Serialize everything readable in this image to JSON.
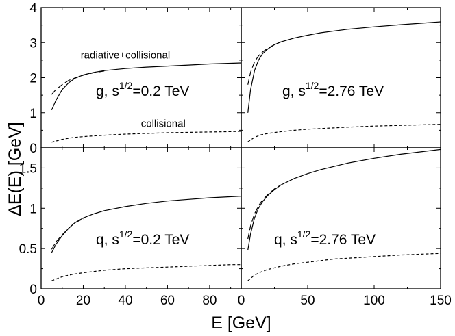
{
  "chart_data": {
    "type": "line",
    "ylabel": "ΔE(E) [GeV]",
    "xlabel": "E [GeV]",
    "layout": "2x2",
    "panels": [
      {
        "id": "top-left",
        "label": "g, s^{1/2}=0.2 TeV",
        "label_main": "g, s",
        "label_sup": "1/2",
        "label_tail": "=0.2 TeV",
        "xlim": [
          0,
          95
        ],
        "ylim": [
          0,
          4
        ],
        "xticks": [
          0,
          20,
          40,
          60,
          80
        ],
        "xtick_labels": [
          "0",
          "20",
          "40",
          "60",
          "80"
        ],
        "yticks": [
          0,
          1,
          2,
          3,
          4
        ],
        "ytick_labels": [
          "0",
          "1",
          "2",
          "3",
          "4"
        ],
        "show_xtick_labels": false,
        "show_ytick_labels": true,
        "annotations": [
          {
            "text": "radiative+collisional",
            "x": 40,
            "y": 2.55
          },
          {
            "text": "collisional",
            "x": 58,
            "y": 0.6
          }
        ],
        "series": [
          {
            "style": "solid",
            "x": [
              5,
              7,
              10,
              13,
              16,
              20,
              25,
              30,
              40,
              50,
              60,
              70,
              80,
              95
            ],
            "y": [
              1.08,
              1.35,
              1.66,
              1.85,
              1.98,
              2.08,
              2.15,
              2.2,
              2.26,
              2.3,
              2.33,
              2.36,
              2.39,
              2.42
            ]
          },
          {
            "style": "dashed",
            "x": [
              5,
              7,
              10,
              13,
              16,
              20,
              25,
              30
            ],
            "y": [
              1.52,
              1.66,
              1.8,
              1.92,
              1.99,
              2.07,
              2.14,
              2.19
            ]
          },
          {
            "style": "dotted",
            "x": [
              5,
              10,
              15,
              20,
              30,
              40,
              50,
              60,
              70,
              80,
              90,
              95
            ],
            "y": [
              0.16,
              0.24,
              0.29,
              0.32,
              0.36,
              0.39,
              0.41,
              0.43,
              0.44,
              0.45,
              0.46,
              0.47
            ]
          }
        ]
      },
      {
        "id": "top-right",
        "label": "g, s^{1/2}=2.76 TeV",
        "label_main": "g, s",
        "label_sup": "1/2",
        "label_tail": "=2.76 TeV",
        "xlim": [
          0,
          150
        ],
        "ylim": [
          0,
          4
        ],
        "xticks": [
          0,
          50,
          100,
          150
        ],
        "xtick_labels": [
          "0",
          "50",
          "100",
          "150"
        ],
        "yticks": [
          0,
          1,
          2,
          3,
          4
        ],
        "ytick_labels": [],
        "show_xtick_labels": false,
        "show_ytick_labels": false,
        "annotations": [],
        "series": [
          {
            "style": "solid",
            "x": [
              5,
              7,
              10,
              13,
              16,
              20,
              25,
              30,
              40,
              50,
              60,
              80,
              100,
              120,
              150
            ],
            "y": [
              1.0,
              1.65,
              2.2,
              2.5,
              2.68,
              2.82,
              2.94,
              3.02,
              3.13,
              3.21,
              3.28,
              3.38,
              3.45,
              3.51,
              3.59
            ]
          },
          {
            "style": "dashed",
            "x": [
              5,
              7,
              10,
              13,
              16,
              20,
              25,
              30
            ],
            "y": [
              1.8,
              2.15,
              2.45,
              2.62,
              2.73,
              2.84,
              2.94,
              3.02
            ]
          },
          {
            "style": "dotted",
            "x": [
              5,
              10,
              15,
              20,
              30,
              40,
              50,
              60,
              70,
              80,
              100,
              120,
              150
            ],
            "y": [
              0.17,
              0.3,
              0.37,
              0.41,
              0.46,
              0.5,
              0.53,
              0.55,
              0.57,
              0.59,
              0.62,
              0.64,
              0.67
            ]
          }
        ]
      },
      {
        "id": "bottom-left",
        "label": "q, s^{1/2}=0.2 TeV",
        "label_main": "q, s",
        "label_sup": "1/2",
        "label_tail": "=0.2 TeV",
        "xlim": [
          0,
          95
        ],
        "ylim": [
          0,
          1.75
        ],
        "xticks": [
          0,
          20,
          40,
          60,
          80
        ],
        "xtick_labels": [
          "0",
          "20",
          "40",
          "60",
          "80"
        ],
        "yticks": [
          0,
          0.5,
          1,
          1.5
        ],
        "ytick_labels": [
          "0",
          "0.5",
          "1",
          "1.5"
        ],
        "show_xtick_labels": true,
        "show_ytick_labels": true,
        "annotations": [],
        "series": [
          {
            "style": "solid",
            "x": [
              5,
              7,
              10,
              13,
              16,
              20,
              25,
              30,
              40,
              50,
              60,
              70,
              80,
              95
            ],
            "y": [
              0.45,
              0.55,
              0.66,
              0.75,
              0.82,
              0.88,
              0.93,
              0.97,
              1.02,
              1.06,
              1.09,
              1.11,
              1.13,
              1.15
            ]
          },
          {
            "style": "dashed",
            "x": [
              5,
              7,
              10,
              13,
              16,
              20
            ],
            "y": [
              0.49,
              0.58,
              0.67,
              0.75,
              0.82,
              0.87
            ]
          },
          {
            "style": "dotted",
            "x": [
              5,
              10,
              15,
              20,
              30,
              40,
              50,
              60,
              70,
              80,
              90,
              95
            ],
            "y": [
              0.1,
              0.15,
              0.18,
              0.2,
              0.23,
              0.25,
              0.26,
              0.27,
              0.28,
              0.29,
              0.3,
              0.3
            ]
          }
        ]
      },
      {
        "id": "bottom-right",
        "label": "q, s^{1/2}=2.76 TeV",
        "label_main": "q, s",
        "label_sup": "1/2",
        "label_tail": "=2.76 TeV",
        "xlim": [
          0,
          150
        ],
        "ylim": [
          0,
          1.75
        ],
        "xticks": [
          0,
          50,
          100,
          150
        ],
        "xtick_labels": [
          "0",
          "50",
          "100",
          "150"
        ],
        "yticks": [
          0,
          0.5,
          1,
          1.5
        ],
        "ytick_labels": [],
        "show_xtick_labels": true,
        "show_ytick_labels": false,
        "annotations": [],
        "series": [
          {
            "style": "solid",
            "x": [
              5,
              7,
              10,
              13,
              16,
              20,
              25,
              30,
              40,
              50,
              60,
              80,
              100,
              120,
              150
            ],
            "y": [
              0.48,
              0.68,
              0.88,
              1.0,
              1.08,
              1.16,
              1.23,
              1.29,
              1.37,
              1.43,
              1.48,
              1.56,
              1.62,
              1.67,
              1.73
            ]
          },
          {
            "style": "dashed",
            "x": [
              5,
              7,
              10,
              13,
              16,
              20,
              25,
              30
            ],
            "y": [
              0.62,
              0.78,
              0.93,
              1.03,
              1.1,
              1.17,
              1.24,
              1.29
            ]
          },
          {
            "style": "dotted",
            "x": [
              5,
              10,
              15,
              20,
              30,
              40,
              50,
              60,
              70,
              80,
              100,
              120,
              150
            ],
            "y": [
              0.1,
              0.17,
              0.21,
              0.24,
              0.28,
              0.31,
              0.33,
              0.35,
              0.37,
              0.38,
              0.4,
              0.42,
              0.44
            ]
          }
        ]
      }
    ]
  }
}
